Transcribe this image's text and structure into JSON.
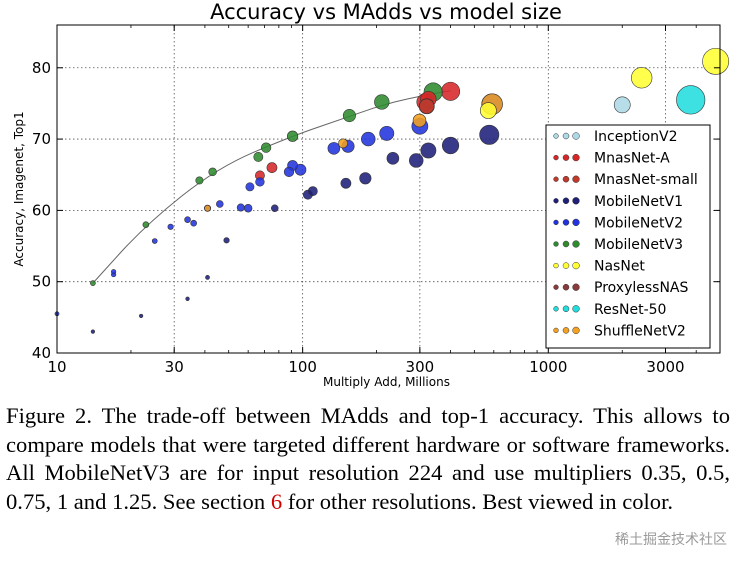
{
  "chart_data": {
    "type": "scatter",
    "title": "Accuracy vs MAdds vs model size",
    "xlabel": "Multiply Add, Millions",
    "ylabel": "Accuracy, Imagenet, Top1",
    "xscale": "log",
    "xlim": [
      10,
      5000
    ],
    "ylim": [
      40,
      86
    ],
    "xticks": [
      10,
      30,
      100,
      300,
      1000,
      3000
    ],
    "xtick_labels": [
      "10",
      "30",
      "100",
      "300",
      "1000",
      "3000"
    ],
    "yticks": [
      40,
      50,
      60,
      70,
      80
    ],
    "ytick_labels": [
      "40",
      "50",
      "60",
      "70",
      "80"
    ],
    "grid": true,
    "legend_position": "right",
    "point_size_encodes": "model size",
    "trend_curve": [
      [
        14,
        49.8
      ],
      [
        23,
        58
      ],
      [
        45,
        66
      ],
      [
        90,
        70.4
      ],
      [
        150,
        73
      ],
      [
        220,
        75
      ],
      [
        330,
        76.3
      ],
      [
        400,
        76.8
      ]
    ],
    "series": [
      {
        "name": "InceptionV2",
        "color": "#add8e6",
        "points": [
          [
            2000,
            74.8,
            3.5
          ]
        ]
      },
      {
        "name": "MnasNet-A",
        "color": "#d62728",
        "points": [
          [
            315,
            75.2,
            3.6
          ],
          [
            325,
            75.6,
            3.4
          ],
          [
            400,
            76.7,
            4.0
          ],
          [
            67,
            64.9,
            2.0
          ],
          [
            75,
            66.0,
            2.2
          ]
        ]
      },
      {
        "name": "MnasNet-small",
        "color": "#c0392b",
        "points": [
          [
            320,
            74.6,
            3.2
          ]
        ]
      },
      {
        "name": "MobileNetV1",
        "color": "#1f1f7a",
        "points": [
          [
            14,
            43.0,
            0.6
          ],
          [
            22,
            45.2,
            0.7
          ],
          [
            34,
            47.6,
            0.8
          ],
          [
            41,
            50.6,
            0.9
          ],
          [
            49,
            55.8,
            1.2
          ],
          [
            77,
            60.3,
            1.5
          ],
          [
            105,
            62.2,
            2.0
          ],
          [
            110,
            62.7,
            2.0
          ],
          [
            150,
            63.8,
            2.2
          ],
          [
            180,
            64.5,
            2.5
          ],
          [
            233,
            67.3,
            2.6
          ],
          [
            290,
            67.0,
            3.0
          ],
          [
            325,
            68.4,
            3.3
          ],
          [
            400,
            69.1,
            3.6
          ],
          [
            575,
            70.6,
            4.2
          ]
        ]
      },
      {
        "name": "MobileNetV2",
        "color": "#2233dd",
        "points": [
          [
            10,
            45.5,
            0.9
          ],
          [
            17,
            51.0,
            1.0
          ],
          [
            17,
            51.4,
            1.0
          ],
          [
            25,
            55.7,
            1.1
          ],
          [
            29,
            57.7,
            1.2
          ],
          [
            34,
            58.7,
            1.3
          ],
          [
            36,
            58.2,
            1.3
          ],
          [
            41,
            60.3,
            1.4
          ],
          [
            46,
            60.9,
            1.5
          ],
          [
            56,
            60.4,
            1.6
          ],
          [
            60,
            60.3,
            1.7
          ],
          [
            61,
            63.3,
            1.8
          ],
          [
            67,
            64.0,
            1.9
          ],
          [
            88,
            65.4,
            2.1
          ],
          [
            91,
            66.3,
            2.2
          ],
          [
            98,
            65.7,
            2.4
          ],
          [
            134,
            68.7,
            2.6
          ],
          [
            153,
            69.0,
            2.7
          ],
          [
            185,
            70.0,
            3.0
          ],
          [
            220,
            70.8,
            3.1
          ],
          [
            300,
            71.8,
            3.5
          ],
          [
            590,
            74.9,
            4.5
          ]
        ]
      },
      {
        "name": "MobileNetV3",
        "color": "#2e8b2e",
        "points": [
          [
            14,
            49.8,
            1.1
          ],
          [
            23,
            58.0,
            1.3
          ],
          [
            38,
            64.2,
            1.6
          ],
          [
            43,
            65.4,
            1.7
          ],
          [
            66,
            67.5,
            2.0
          ],
          [
            71,
            68.8,
            2.1
          ],
          [
            91,
            70.4,
            2.3
          ],
          [
            155,
            73.3,
            2.7
          ],
          [
            210,
            75.2,
            3.2
          ],
          [
            340,
            76.6,
            4.0
          ]
        ]
      },
      {
        "name": "NasNet",
        "color": "#ffff33",
        "points": [
          [
            570,
            74.0,
            3.5
          ],
          [
            2400,
            78.6,
            4.5
          ],
          [
            4800,
            80.9,
            5.7
          ]
        ]
      },
      {
        "name": "ProxylessNAS",
        "color": "#8b3a3a",
        "points": [
          [
            320,
            74.6,
            3.3
          ]
        ]
      },
      {
        "name": "ResNet-50",
        "color": "#22dddd",
        "points": [
          [
            3800,
            75.5,
            6.2
          ]
        ]
      },
      {
        "name": "ShuffleNetV2",
        "color": "#f4a020",
        "points": [
          [
            41,
            60.3,
            1.3
          ],
          [
            146,
            69.4,
            2.0
          ],
          [
            299,
            72.6,
            2.8
          ],
          [
            591,
            74.9,
            4.5
          ]
        ]
      }
    ]
  },
  "caption": {
    "main": "Figure 2. The trade-off between MAdds and top-1 accuracy. This allows to compare models that were targeted different hardware or software frameworks. All MobileNetV3 are for input resolution 224 and use multipliers 0.35, 0.5, 0.75, 1 and 1.25. See section ",
    "ref": "6",
    "end": " for other resolutions. Best viewed in color."
  },
  "watermark": "稀土掘金技术社区"
}
